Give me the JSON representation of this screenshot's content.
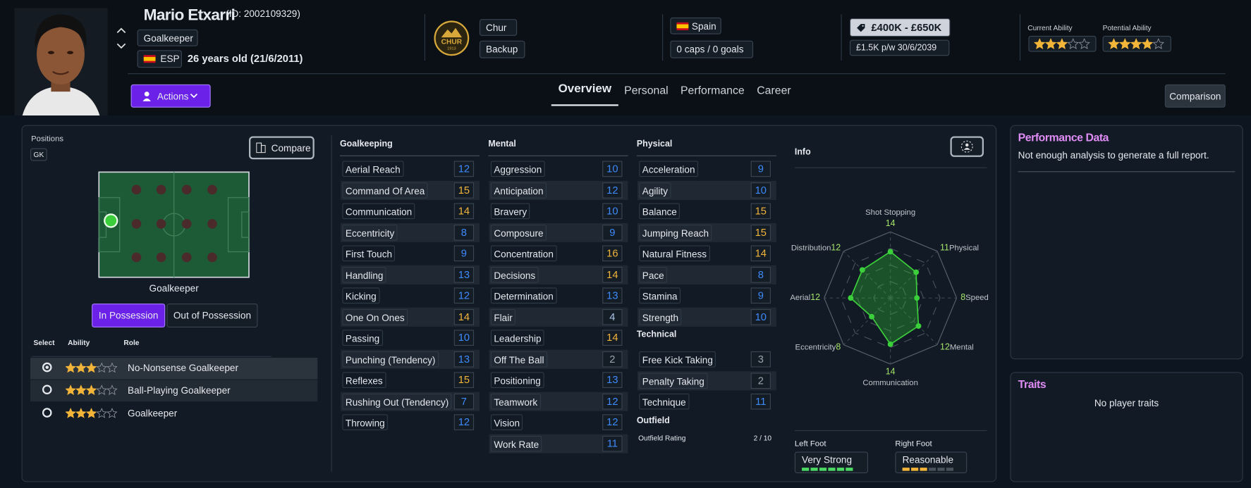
{
  "header": {
    "name": "Mario Etxarri",
    "id": "(ID: 2002109329)",
    "position": "Goalkeeper",
    "nation_code": "ESP",
    "age": "26 years old (21/6/2011)",
    "club": "Chur",
    "club_badge": "CHUR",
    "club_badge_year": "1913",
    "squad_status": "Backup",
    "nation": "Spain",
    "caps": "0 caps / 0 goals",
    "value": "£400K - £650K",
    "wage": "£1.5K p/w 30/6/2039",
    "current_ability_label": "Current Ability",
    "current_ability": 3,
    "potential_ability_label": "Potential Ability",
    "potential_ability": 4
  },
  "actions": "Actions",
  "tabs": [
    "Overview",
    "Personal",
    "Performance",
    "Career"
  ],
  "comparison": "Comparison",
  "positions": {
    "title": "Positions",
    "codes": [
      "GK"
    ],
    "compare": "Compare",
    "pitch_label": "Goalkeeper",
    "modes": [
      "In Possession",
      "Out of Possession"
    ]
  },
  "roles": {
    "headers": [
      "Select",
      "Ability",
      "Role"
    ],
    "rows": [
      {
        "ability": 3,
        "role": "No-Nonsense Goalkeeper"
      },
      {
        "ability": 3,
        "role": "Ball-Playing Goalkeeper"
      },
      {
        "ability": 3,
        "role": "Goalkeeper"
      }
    ]
  },
  "attributes": [
    {
      "group": "Goalkeeping",
      "items": [
        {
          "name": "Aerial Reach",
          "value": 12
        },
        {
          "name": "Command Of Area",
          "value": 15
        },
        {
          "name": "Communication",
          "value": 14
        },
        {
          "name": "Eccentricity",
          "value": 8
        },
        {
          "name": "First Touch",
          "value": 9
        },
        {
          "name": "Handling",
          "value": 13
        },
        {
          "name": "Kicking",
          "value": 12
        },
        {
          "name": "One On Ones",
          "value": 14
        },
        {
          "name": "Passing",
          "value": 10
        },
        {
          "name": "Punching (Tendency)",
          "value": 13
        },
        {
          "name": "Reflexes",
          "value": 15
        },
        {
          "name": "Rushing Out (Tendency)",
          "value": 7
        },
        {
          "name": "Throwing",
          "value": 12
        }
      ]
    },
    {
      "group": "Mental",
      "items": [
        {
          "name": "Aggression",
          "value": 10
        },
        {
          "name": "Anticipation",
          "value": 12
        },
        {
          "name": "Bravery",
          "value": 10
        },
        {
          "name": "Composure",
          "value": 9
        },
        {
          "name": "Concentration",
          "value": 16
        },
        {
          "name": "Decisions",
          "value": 14
        },
        {
          "name": "Determination",
          "value": 13
        },
        {
          "name": "Flair",
          "value": 4
        },
        {
          "name": "Leadership",
          "value": 14
        },
        {
          "name": "Off The Ball",
          "value": 2
        },
        {
          "name": "Positioning",
          "value": 13
        },
        {
          "name": "Teamwork",
          "value": 12
        },
        {
          "name": "Vision",
          "value": 12
        },
        {
          "name": "Work Rate",
          "value": 11
        }
      ]
    },
    {
      "group": "Physical",
      "items": [
        {
          "name": "Acceleration",
          "value": 9
        },
        {
          "name": "Agility",
          "value": 10
        },
        {
          "name": "Balance",
          "value": 15
        },
        {
          "name": "Jumping Reach",
          "value": 15
        },
        {
          "name": "Natural Fitness",
          "value": 14
        },
        {
          "name": "Pace",
          "value": 8
        },
        {
          "name": "Stamina",
          "value": 9
        },
        {
          "name": "Strength",
          "value": 10
        }
      ]
    },
    {
      "group": "Technical",
      "items": [
        {
          "name": "Free Kick Taking",
          "value": 3
        },
        {
          "name": "Penalty Taking",
          "value": 2
        },
        {
          "name": "Technique",
          "value": 11
        }
      ]
    }
  ],
  "outfield": {
    "title": "Outfield",
    "label": "Outfield Rating",
    "value": "2 / 10"
  },
  "info": {
    "title": "Info",
    "radar": {
      "rlim": [
        0,
        20
      ],
      "axes": [
        {
          "name": "Shot Stopping",
          "value": 14
        },
        {
          "name": "Physical",
          "value": 11
        },
        {
          "name": "Speed",
          "value": 8
        },
        {
          "name": "Mental",
          "value": 12
        },
        {
          "name": "Communication",
          "value": 14
        },
        {
          "name": "Eccentricity",
          "value": 8
        },
        {
          "name": "Aerial",
          "value": 12
        },
        {
          "name": "Distribution",
          "value": 12
        }
      ]
    },
    "left_foot": {
      "label": "Left Foot",
      "rating": "Very Strong",
      "level": 6
    },
    "right_foot": {
      "label": "Right Foot",
      "rating": "Reasonable",
      "level": 3
    }
  },
  "performance": {
    "title": "Performance Data",
    "text": "Not enough analysis to generate a full report."
  },
  "traits": {
    "title": "Traits",
    "text": "No player traits"
  }
}
